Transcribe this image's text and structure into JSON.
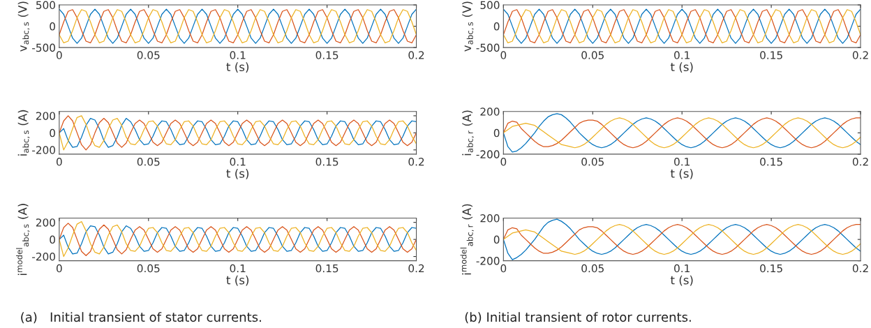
{
  "chart_data": [
    {
      "type": "line",
      "ylabel": "v$_{abc,s}$ (V)",
      "xlabel": "t (s)",
      "xlim": [
        0,
        0.2
      ],
      "xticks": [
        0,
        0.05,
        0.1,
        0.15,
        0.2
      ],
      "ylim": [
        -500,
        500
      ],
      "yticks": [
        -500,
        0,
        500
      ],
      "grid": false,
      "x": [
        0,
        0.0025,
        0.005,
        0.0075,
        0.01,
        0.0125,
        0.015,
        0.0175,
        0.02,
        0.0225,
        0.025,
        0.0275,
        0.03,
        0.0325,
        0.035,
        0.0375,
        0.04,
        0.0425,
        0.045,
        0.0475,
        0.05,
        0.0525,
        0.055,
        0.0575,
        0.06,
        0.0625,
        0.065,
        0.0675,
        0.07,
        0.0725,
        0.075,
        0.0775,
        0.08,
        0.0825,
        0.085,
        0.0875,
        0.09,
        0.0925,
        0.095,
        0.0975,
        0.1,
        0.1025,
        0.105,
        0.1075,
        0.11,
        0.1125,
        0.115,
        0.1175,
        0.12,
        0.1225,
        0.125,
        0.1275,
        0.13,
        0.1325,
        0.135,
        0.1375,
        0.14,
        0.1425,
        0.145,
        0.1475,
        0.15,
        0.1525,
        0.155,
        0.1575,
        0.16,
        0.1625,
        0.165,
        0.1675,
        0.17,
        0.1725,
        0.175,
        0.1775,
        0.18,
        0.1825,
        0.185,
        0.1875,
        0.19,
        0.1925,
        0.195,
        0.1975,
        0.2
      ],
      "series": [
        {
          "color": "#0072bd",
          "values": [
            400,
            280,
            0,
            -280,
            -400,
            -280,
            0,
            280,
            400,
            280,
            0,
            -280,
            -400,
            -280,
            0,
            280,
            400,
            280,
            0,
            -280,
            -400,
            -280,
            0,
            280,
            400,
            280,
            0,
            -280,
            -400,
            -280,
            0,
            280,
            400,
            280,
            0,
            -280,
            -400,
            -280,
            0,
            280,
            400,
            280,
            0,
            -280,
            -400,
            -280,
            0,
            280,
            400,
            280,
            0,
            -280,
            -400,
            -280,
            0,
            280,
            400,
            280,
            0,
            -280,
            -400,
            -280,
            0,
            280,
            400,
            280,
            0,
            -280,
            -400,
            -280,
            0,
            280,
            400,
            280,
            0,
            -280,
            -400,
            -280,
            0,
            280,
            400
          ]
        },
        {
          "color": "#d95319",
          "values": [
            -200,
            100,
            350,
            390,
            200,
            -100,
            -350,
            -390,
            -200,
            100,
            350,
            390,
            200,
            -100,
            -350,
            -390,
            -200,
            100,
            350,
            390,
            200,
            -100,
            -350,
            -390,
            -200,
            100,
            350,
            390,
            200,
            -100,
            -350,
            -390,
            -200,
            100,
            350,
            390,
            200,
            -100,
            -350,
            -390,
            -200,
            100,
            350,
            390,
            200,
            -100,
            -350,
            -390,
            -200,
            100,
            350,
            390,
            200,
            -100,
            -350,
            -390,
            -200,
            100,
            350,
            390,
            200,
            -100,
            -350,
            -390,
            -200,
            100,
            350,
            390,
            200,
            -100,
            -350,
            -390,
            -200,
            100,
            350,
            390,
            200,
            -100,
            -350,
            -390,
            -200
          ]
        },
        {
          "color": "#edb120",
          "values": [
            -200,
            -390,
            -350,
            -100,
            200,
            390,
            350,
            100,
            -200,
            -390,
            -350,
            -100,
            200,
            390,
            350,
            100,
            -200,
            -390,
            -350,
            -100,
            200,
            390,
            350,
            100,
            -200,
            -390,
            -350,
            -100,
            200,
            390,
            350,
            100,
            -200,
            -390,
            -350,
            -100,
            200,
            390,
            350,
            100,
            -200,
            -390,
            -350,
            -100,
            200,
            390,
            350,
            100,
            -200,
            -390,
            -350,
            -100,
            200,
            390,
            350,
            100,
            -200,
            -390,
            -350,
            -100,
            200,
            390,
            350,
            100,
            -200,
            -390,
            -350,
            -100,
            200,
            390,
            350,
            100,
            -200,
            -390,
            -350,
            -100,
            200,
            390,
            350,
            100,
            -200
          ]
        }
      ]
    },
    {
      "type": "line",
      "ylabel": "i$_{abc,s}$ (A)",
      "xlabel": "t (s)",
      "xlim": [
        0,
        0.2
      ],
      "xticks": [
        0,
        0.05,
        0.1,
        0.15,
        0.2
      ],
      "ylim": [
        -250,
        250
      ],
      "yticks": [
        -200,
        0,
        200
      ],
      "grid": false,
      "x": [
        0,
        0.0025,
        0.005,
        0.0075,
        0.01,
        0.0125,
        0.015,
        0.0175,
        0.02,
        0.0225,
        0.025,
        0.0275,
        0.03,
        0.0325,
        0.035,
        0.0375,
        0.04,
        0.0425,
        0.045,
        0.0475,
        0.05,
        0.0525,
        0.055,
        0.0575,
        0.06,
        0.0625,
        0.065,
        0.0675,
        0.07,
        0.0725,
        0.075,
        0.0775,
        0.08,
        0.0825,
        0.085,
        0.0875,
        0.09,
        0.0925,
        0.095,
        0.0975,
        0.1,
        0.1025,
        0.105,
        0.1075,
        0.11,
        0.1125,
        0.115,
        0.1175,
        0.12,
        0.1225,
        0.125,
        0.1275,
        0.13,
        0.1325,
        0.135,
        0.1375,
        0.14,
        0.1425,
        0.145,
        0.1475,
        0.15,
        0.1525,
        0.155,
        0.1575,
        0.16,
        0.1625,
        0.165,
        0.1675,
        0.17,
        0.1725,
        0.175,
        0.1775,
        0.18,
        0.1825,
        0.185,
        0.1875,
        0.19,
        0.1925,
        0.195,
        0.1975,
        0.2
      ],
      "series": [
        {
          "color": "#0072bd",
          "values": [
            0,
            50,
            -90,
            -170,
            -160,
            -50,
            90,
            170,
            150,
            50,
            -90,
            -170,
            -150,
            -50,
            90,
            170,
            130,
            40,
            -80,
            -140,
            -130,
            -40,
            80,
            140,
            130,
            40,
            -80,
            -140,
            -130,
            -40,
            80,
            140,
            130,
            40,
            -80,
            -140,
            -130,
            -40,
            80,
            140,
            130,
            40,
            -80,
            -140,
            -130,
            -40,
            80,
            140,
            130,
            40,
            -80,
            -140,
            -130,
            -40,
            80,
            140,
            130,
            40,
            -80,
            -140,
            -130,
            -40,
            80,
            140,
            130,
            40,
            -80,
            -140,
            -130,
            -40,
            80,
            140,
            130,
            40,
            -80,
            -140,
            -130,
            -40,
            80,
            140,
            130
          ]
        },
        {
          "color": "#d95319",
          "values": [
            0,
            140,
            200,
            140,
            0,
            -140,
            -200,
            -140,
            0,
            120,
            170,
            120,
            0,
            -120,
            -170,
            -120,
            0,
            110,
            150,
            110,
            0,
            -110,
            -150,
            -110,
            0,
            110,
            150,
            110,
            0,
            -110,
            -150,
            -110,
            0,
            110,
            150,
            110,
            0,
            -110,
            -150,
            -110,
            0,
            110,
            150,
            110,
            0,
            -110,
            -150,
            -110,
            0,
            110,
            150,
            110,
            0,
            -110,
            -150,
            -110,
            0,
            110,
            150,
            110,
            0,
            -110,
            -150,
            -110,
            0,
            110,
            150,
            110,
            0,
            -110,
            -150,
            -110,
            0,
            110,
            150,
            110,
            0,
            -110,
            -150,
            -110,
            0
          ]
        },
        {
          "color": "#edb120",
          "values": [
            0,
            -200,
            -100,
            50,
            180,
            200,
            100,
            -50,
            -150,
            -170,
            -90,
            50,
            150,
            170,
            90,
            -50,
            -130,
            -140,
            -80,
            40,
            130,
            140,
            80,
            -40,
            -130,
            -140,
            -80,
            40,
            130,
            140,
            80,
            -40,
            -130,
            -140,
            -80,
            40,
            130,
            140,
            80,
            -40,
            -130,
            -140,
            -80,
            40,
            130,
            140,
            80,
            -40,
            -130,
            -140,
            -80,
            40,
            130,
            140,
            80,
            -40,
            -130,
            -140,
            -80,
            40,
            130,
            140,
            80,
            -40,
            -130,
            -140,
            -80,
            40,
            130,
            140,
            80,
            -40,
            -130,
            -140,
            -80,
            40,
            130,
            140,
            80,
            -40,
            -130
          ]
        }
      ]
    },
    {
      "type": "line",
      "ylabel": "i$^{model}$$_{abc,s}$ (A)",
      "xlabel": "t (s)",
      "xlim": [
        0,
        0.2
      ],
      "xticks": [
        0,
        0.05,
        0.1,
        0.15,
        0.2
      ],
      "ylim": [
        -250,
        250
      ],
      "yticks": [
        -200,
        0,
        200
      ],
      "grid": false,
      "annotations": [
        "(a)   Initial transient of stator currents."
      ],
      "x": [
        0,
        0.0025,
        0.005,
        0.0075,
        0.01,
        0.0125,
        0.015,
        0.0175,
        0.02,
        0.0225,
        0.025,
        0.0275,
        0.03,
        0.0325,
        0.035,
        0.0375,
        0.04,
        0.0425,
        0.045,
        0.0475,
        0.05,
        0.0525,
        0.055,
        0.0575,
        0.06,
        0.0625,
        0.065,
        0.0675,
        0.07,
        0.0725,
        0.075,
        0.0775,
        0.08,
        0.0825,
        0.085,
        0.0875,
        0.09,
        0.0925,
        0.095,
        0.0975,
        0.1,
        0.1025,
        0.105,
        0.1075,
        0.11,
        0.1125,
        0.115,
        0.1175,
        0.12,
        0.1225,
        0.125,
        0.1275,
        0.13,
        0.1325,
        0.135,
        0.1375,
        0.14,
        0.1425,
        0.145,
        0.1475,
        0.15,
        0.1525,
        0.155,
        0.1575,
        0.16,
        0.1625,
        0.165,
        0.1675,
        0.17,
        0.1725,
        0.175,
        0.1775,
        0.18,
        0.1825,
        0.185,
        0.1875,
        0.19,
        0.1925,
        0.195,
        0.1975,
        0.2
      ],
      "series": [
        {
          "color": "#0072bd",
          "values": [
            0,
            50,
            -90,
            -170,
            -160,
            -50,
            90,
            160,
            150,
            50,
            -90,
            -170,
            -150,
            -50,
            90,
            160,
            130,
            40,
            -80,
            -140,
            -130,
            -40,
            80,
            140,
            130,
            40,
            -80,
            -140,
            -130,
            -40,
            80,
            140,
            130,
            40,
            -80,
            -140,
            -130,
            -40,
            80,
            140,
            130,
            40,
            -80,
            -140,
            -130,
            -40,
            80,
            140,
            130,
            40,
            -80,
            -140,
            -130,
            -40,
            80,
            140,
            130,
            40,
            -80,
            -140,
            -130,
            -40,
            80,
            140,
            130,
            40,
            -80,
            -140,
            -130,
            -40,
            80,
            140,
            130,
            40,
            -80,
            -140,
            -130,
            -40,
            80,
            140,
            130
          ]
        },
        {
          "color": "#d95319",
          "values": [
            0,
            140,
            190,
            140,
            0,
            -140,
            -190,
            -140,
            0,
            120,
            170,
            120,
            0,
            -120,
            -170,
            -120,
            0,
            110,
            150,
            110,
            0,
            -110,
            -150,
            -110,
            0,
            110,
            150,
            110,
            0,
            -110,
            -150,
            -110,
            0,
            110,
            150,
            110,
            0,
            -110,
            -150,
            -110,
            0,
            110,
            150,
            110,
            0,
            -110,
            -150,
            -110,
            0,
            110,
            150,
            110,
            0,
            -110,
            -150,
            -110,
            0,
            110,
            150,
            110,
            0,
            -110,
            -150,
            -110,
            0,
            110,
            150,
            110,
            0,
            -110,
            -150,
            -110,
            0,
            110,
            150,
            110,
            0,
            -110,
            -150,
            -110,
            0
          ]
        },
        {
          "color": "#edb120",
          "values": [
            0,
            -200,
            -100,
            50,
            180,
            210,
            100,
            -50,
            -150,
            -170,
            -90,
            50,
            150,
            170,
            90,
            -50,
            -130,
            -140,
            -80,
            40,
            130,
            140,
            80,
            -40,
            -130,
            -140,
            -80,
            40,
            130,
            140,
            80,
            -40,
            -130,
            -140,
            -80,
            40,
            130,
            140,
            80,
            -40,
            -130,
            -140,
            -80,
            40,
            130,
            140,
            80,
            -40,
            -130,
            -140,
            -80,
            40,
            130,
            140,
            80,
            -40,
            -130,
            -140,
            -80,
            40,
            130,
            140,
            80,
            -40,
            -130,
            -140,
            -80,
            40,
            130,
            140,
            80,
            -40,
            -130,
            -140,
            -80,
            40,
            130,
            140,
            80,
            -40,
            -130
          ]
        }
      ]
    },
    {
      "type": "line",
      "ylabel": "v$_{abc,s}$ (V)",
      "xlabel": "t (s)",
      "xlim": [
        0,
        0.2
      ],
      "xticks": [
        0,
        0.05,
        0.1,
        0.15,
        0.2
      ],
      "ylim": [
        -500,
        500
      ],
      "yticks": [
        -500,
        0,
        500
      ],
      "grid": false,
      "x": [
        0,
        0.0025,
        0.005,
        0.0075,
        0.01,
        0.0125,
        0.015,
        0.0175,
        0.02,
        0.0225,
        0.025,
        0.0275,
        0.03,
        0.0325,
        0.035,
        0.0375,
        0.04,
        0.0425,
        0.045,
        0.0475,
        0.05,
        0.0525,
        0.055,
        0.0575,
        0.06,
        0.0625,
        0.065,
        0.0675,
        0.07,
        0.0725,
        0.075,
        0.0775,
        0.08,
        0.0825,
        0.085,
        0.0875,
        0.09,
        0.0925,
        0.095,
        0.0975,
        0.1,
        0.1025,
        0.105,
        0.1075,
        0.11,
        0.1125,
        0.115,
        0.1175,
        0.12,
        0.1225,
        0.125,
        0.1275,
        0.13,
        0.1325,
        0.135,
        0.1375,
        0.14,
        0.1425,
        0.145,
        0.1475,
        0.15,
        0.1525,
        0.155,
        0.1575,
        0.16,
        0.1625,
        0.165,
        0.1675,
        0.17,
        0.1725,
        0.175,
        0.1775,
        0.18,
        0.1825,
        0.185,
        0.1875,
        0.19,
        0.1925,
        0.195,
        0.1975,
        0.2
      ],
      "series": [
        {
          "color": "#0072bd",
          "values": [
            400,
            280,
            0,
            -280,
            -400,
            -280,
            0,
            280,
            400,
            280,
            0,
            -280,
            -400,
            -280,
            0,
            280,
            400,
            280,
            0,
            -280,
            -400,
            -280,
            0,
            280,
            400,
            280,
            0,
            -280,
            -400,
            -280,
            0,
            280,
            400,
            280,
            0,
            -280,
            -400,
            -280,
            0,
            280,
            400,
            280,
            0,
            -280,
            -400,
            -280,
            0,
            280,
            400,
            280,
            0,
            -280,
            -400,
            -280,
            0,
            280,
            400,
            280,
            0,
            -280,
            -400,
            -280,
            0,
            280,
            400,
            280,
            0,
            -280,
            -400,
            -280,
            0,
            280,
            400,
            280,
            0,
            -280,
            -400,
            -280,
            0,
            280,
            400
          ]
        },
        {
          "color": "#d95319",
          "values": [
            -200,
            100,
            350,
            390,
            200,
            -100,
            -350,
            -390,
            -200,
            100,
            350,
            390,
            200,
            -100,
            -350,
            -390,
            -200,
            100,
            350,
            390,
            200,
            -100,
            -350,
            -390,
            -200,
            100,
            350,
            390,
            200,
            -100,
            -350,
            -390,
            -200,
            100,
            350,
            390,
            200,
            -100,
            -350,
            -390,
            -200,
            100,
            350,
            390,
            200,
            -100,
            -350,
            -390,
            -200,
            100,
            350,
            390,
            200,
            -100,
            -350,
            -390,
            -200,
            100,
            350,
            390,
            200,
            -100,
            -350,
            -390,
            -200,
            100,
            350,
            390,
            200,
            -100,
            -350,
            -390,
            -200,
            100,
            350,
            390,
            200,
            -100,
            -350,
            -390,
            -200
          ]
        },
        {
          "color": "#edb120",
          "values": [
            -200,
            -390,
            -350,
            -100,
            200,
            390,
            350,
            100,
            -200,
            -390,
            -350,
            -100,
            200,
            390,
            350,
            100,
            -200,
            -390,
            -350,
            -100,
            200,
            390,
            350,
            100,
            -200,
            -390,
            -350,
            -100,
            200,
            390,
            350,
            100,
            -200,
            -390,
            -350,
            -100,
            200,
            390,
            350,
            100,
            -200,
            -390,
            -350,
            -100,
            200,
            390,
            350,
            100,
            -200,
            -390,
            -350,
            -100,
            200,
            390,
            350,
            100,
            -200,
            -390,
            -350,
            -100,
            200,
            390,
            350,
            100,
            -200,
            -390,
            -350,
            -100,
            200,
            390,
            350,
            100,
            -200,
            -390,
            -350,
            -100,
            200,
            390,
            350,
            100,
            -200
          ]
        }
      ]
    },
    {
      "type": "line",
      "ylabel": "i$_{abc,r}$ (A)",
      "xlabel": "t (s)",
      "xlim": [
        0,
        0.2
      ],
      "xticks": [
        0,
        0.05,
        0.1,
        0.15,
        0.2
      ],
      "ylim": [
        -200,
        200
      ],
      "yticks": [
        -200,
        0,
        200
      ],
      "grid": false,
      "x": [
        0,
        0.0025,
        0.005,
        0.0075,
        0.01,
        0.0125,
        0.015,
        0.0175,
        0.02,
        0.0225,
        0.025,
        0.0275,
        0.03,
        0.0325,
        0.035,
        0.0375,
        0.04,
        0.0425,
        0.045,
        0.0475,
        0.05,
        0.0525,
        0.055,
        0.0575,
        0.06,
        0.0625,
        0.065,
        0.0675,
        0.07,
        0.0725,
        0.075,
        0.0775,
        0.08,
        0.0825,
        0.085,
        0.0875,
        0.09,
        0.0925,
        0.095,
        0.0975,
        0.1,
        0.1025,
        0.105,
        0.1075,
        0.11,
        0.1125,
        0.115,
        0.1175,
        0.12,
        0.1225,
        0.125,
        0.1275,
        0.13,
        0.1325,
        0.135,
        0.1375,
        0.14,
        0.1425,
        0.145,
        0.1475,
        0.15,
        0.1525,
        0.155,
        0.1575,
        0.16,
        0.1625,
        0.165,
        0.1675,
        0.17,
        0.1725,
        0.175,
        0.1775,
        0.18,
        0.1825,
        0.185,
        0.1875,
        0.19,
        0.1925,
        0.195,
        0.1975,
        0.2
      ],
      "series": [
        {
          "color": "#0072bd",
          "values": [
            0,
            -130,
            -180,
            -170,
            -140,
            -100,
            -50,
            0,
            60,
            110,
            150,
            170,
            180,
            170,
            140,
            100,
            50,
            0,
            -40,
            -80,
            -110,
            -130,
            -140,
            -130,
            -110,
            -80,
            -40,
            0,
            40,
            80,
            110,
            130,
            140,
            130,
            110,
            80,
            40,
            0,
            -40,
            -80,
            -110,
            -130,
            -140,
            -130,
            -110,
            -80,
            -40,
            0,
            40,
            80,
            110,
            130,
            140,
            130,
            110,
            80,
            40,
            0,
            -40,
            -80,
            -110,
            -130,
            -140,
            -130,
            -110,
            -80,
            -40,
            0,
            40,
            80,
            110,
            130,
            140,
            130,
            110,
            80,
            40,
            0,
            -40,
            -80,
            -110
          ]
        },
        {
          "color": "#d95319",
          "values": [
            0,
            90,
            110,
            100,
            40,
            0,
            -40,
            -80,
            -110,
            -130,
            -130,
            -120,
            -100,
            -70,
            -30,
            10,
            50,
            90,
            110,
            120,
            120,
            110,
            80,
            40,
            0,
            -40,
            -80,
            -110,
            -130,
            -140,
            -130,
            -110,
            -80,
            -40,
            0,
            40,
            80,
            110,
            130,
            140,
            130,
            110,
            80,
            40,
            0,
            -40,
            -80,
            -110,
            -130,
            -140,
            -130,
            -110,
            -80,
            -40,
            0,
            40,
            80,
            110,
            130,
            140,
            130,
            110,
            80,
            40,
            0,
            -40,
            -80,
            -110,
            -130,
            -140,
            -130,
            -110,
            -80,
            -40,
            0,
            40,
            80,
            110,
            130,
            140,
            140
          ]
        },
        {
          "color": "#edb120",
          "values": [
            0,
            30,
            60,
            70,
            80,
            90,
            80,
            70,
            40,
            10,
            -20,
            -50,
            -80,
            -110,
            -120,
            -130,
            -140,
            -130,
            -110,
            -80,
            -40,
            0,
            40,
            80,
            110,
            130,
            140,
            130,
            110,
            80,
            40,
            0,
            -40,
            -80,
            -110,
            -130,
            -140,
            -130,
            -110,
            -80,
            -40,
            0,
            40,
            80,
            110,
            130,
            140,
            130,
            110,
            80,
            40,
            0,
            -40,
            -80,
            -110,
            -130,
            -140,
            -130,
            -110,
            -80,
            -40,
            0,
            40,
            80,
            110,
            130,
            140,
            130,
            110,
            80,
            40,
            0,
            -40,
            -80,
            -110,
            -130,
            -140,
            -130,
            -110,
            -80,
            -40
          ]
        }
      ]
    },
    {
      "type": "line",
      "ylabel": "i$^{model}$$_{abc,r}$ (A)",
      "xlabel": "t (s)",
      "xlim": [
        0,
        0.2
      ],
      "xticks": [
        0,
        0.05,
        0.1,
        0.15,
        0.2
      ],
      "ylim": [
        -200,
        200
      ],
      "yticks": [
        -200,
        0,
        200
      ],
      "grid": false,
      "annotations": [
        "(b) Initial transient of rotor currents."
      ],
      "x": [
        0,
        0.0025,
        0.005,
        0.0075,
        0.01,
        0.0125,
        0.015,
        0.0175,
        0.02,
        0.0225,
        0.025,
        0.0275,
        0.03,
        0.0325,
        0.035,
        0.0375,
        0.04,
        0.0425,
        0.045,
        0.0475,
        0.05,
        0.0525,
        0.055,
        0.0575,
        0.06,
        0.0625,
        0.065,
        0.0675,
        0.07,
        0.0725,
        0.075,
        0.0775,
        0.08,
        0.0825,
        0.085,
        0.0875,
        0.09,
        0.0925,
        0.095,
        0.0975,
        0.1,
        0.1025,
        0.105,
        0.1075,
        0.11,
        0.1125,
        0.115,
        0.1175,
        0.12,
        0.1225,
        0.125,
        0.1275,
        0.13,
        0.1325,
        0.135,
        0.1375,
        0.14,
        0.1425,
        0.145,
        0.1475,
        0.15,
        0.1525,
        0.155,
        0.1575,
        0.16,
        0.1625,
        0.165,
        0.1675,
        0.17,
        0.1725,
        0.175,
        0.1775,
        0.18,
        0.1825,
        0.185,
        0.1875,
        0.19,
        0.1925,
        0.195,
        0.1975,
        0.2
      ],
      "series": [
        {
          "color": "#0072bd",
          "values": [
            0,
            -130,
            -190,
            -170,
            -140,
            -100,
            -50,
            0,
            60,
            120,
            160,
            180,
            190,
            170,
            140,
            100,
            50,
            0,
            -40,
            -80,
            -110,
            -130,
            -140,
            -130,
            -110,
            -80,
            -40,
            0,
            40,
            80,
            110,
            130,
            140,
            130,
            110,
            80,
            40,
            0,
            -40,
            -80,
            -110,
            -130,
            -140,
            -130,
            -110,
            -80,
            -40,
            0,
            40,
            80,
            110,
            130,
            140,
            130,
            110,
            80,
            40,
            0,
            -40,
            -80,
            -110,
            -130,
            -140,
            -130,
            -110,
            -80,
            -40,
            0,
            40,
            80,
            110,
            130,
            140,
            130,
            110,
            80,
            40,
            0,
            -40,
            -80,
            -110
          ]
        },
        {
          "color": "#d95319",
          "values": [
            0,
            90,
            110,
            100,
            40,
            0,
            -40,
            -80,
            -110,
            -130,
            -130,
            -120,
            -100,
            -70,
            -30,
            10,
            50,
            90,
            110,
            120,
            120,
            110,
            80,
            40,
            0,
            -40,
            -80,
            -110,
            -130,
            -140,
            -130,
            -110,
            -80,
            -40,
            0,
            40,
            80,
            110,
            130,
            140,
            130,
            110,
            80,
            40,
            0,
            -40,
            -80,
            -110,
            -130,
            -140,
            -130,
            -110,
            -80,
            -40,
            0,
            40,
            80,
            110,
            130,
            140,
            130,
            110,
            80,
            40,
            0,
            -40,
            -80,
            -110,
            -130,
            -140,
            -130,
            -110,
            -80,
            -40,
            0,
            40,
            80,
            110,
            130,
            140,
            140
          ]
        },
        {
          "color": "#edb120",
          "values": [
            0,
            30,
            60,
            70,
            80,
            90,
            80,
            70,
            40,
            10,
            -20,
            -50,
            -80,
            -110,
            -120,
            -130,
            -140,
            -130,
            -110,
            -80,
            -40,
            0,
            40,
            80,
            110,
            130,
            140,
            130,
            110,
            80,
            40,
            0,
            -40,
            -80,
            -110,
            -130,
            -140,
            -130,
            -110,
            -80,
            -40,
            0,
            40,
            80,
            110,
            130,
            140,
            130,
            110,
            80,
            40,
            0,
            -40,
            -80,
            -110,
            -130,
            -140,
            -130,
            -110,
            -80,
            -40,
            0,
            40,
            80,
            110,
            130,
            140,
            130,
            110,
            80,
            40,
            0,
            -40,
            -80,
            -110,
            -130,
            -140,
            -130,
            -110,
            -80,
            -40
          ]
        }
      ]
    }
  ]
}
